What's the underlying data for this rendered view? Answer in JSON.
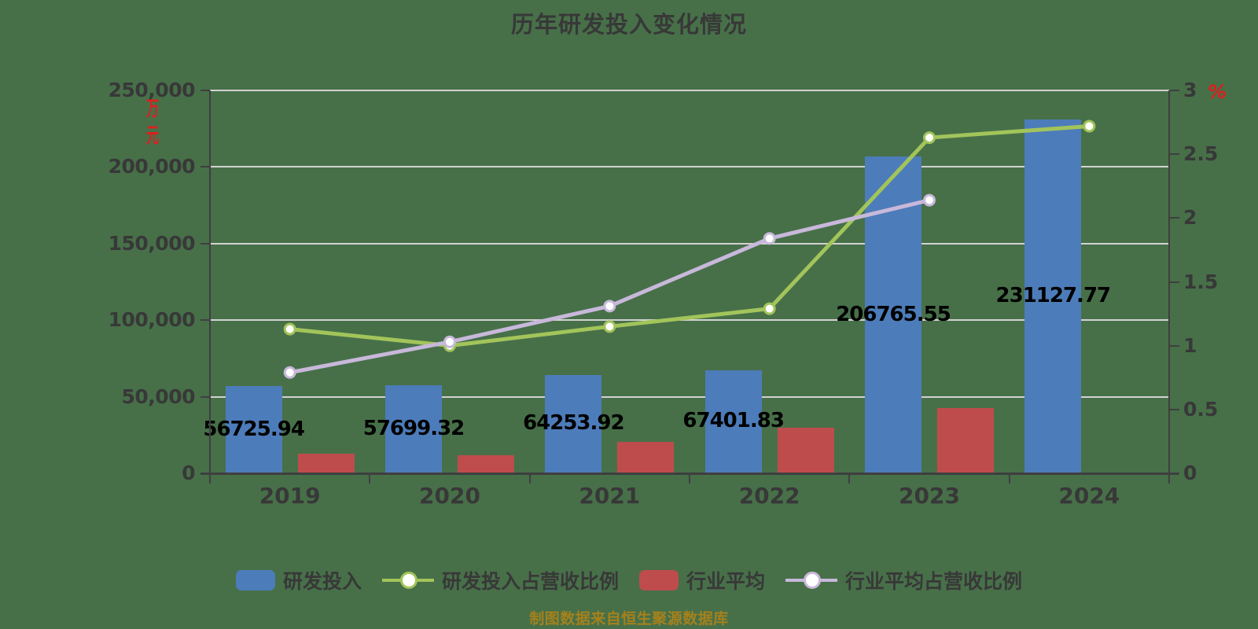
{
  "title": "历年研发投入变化情况",
  "caption": "制图数据来自恒生聚源数据库",
  "axes": {
    "left": {
      "unit": "万元",
      "tick_values": [
        0,
        50000,
        100000,
        150000,
        200000,
        250000
      ],
      "tick_labels": [
        "0",
        "50,000",
        "100,000",
        "150,000",
        "200,000",
        "250,000"
      ]
    },
    "right": {
      "unit": "%",
      "tick_values": [
        0,
        0.5,
        1,
        1.5,
        2,
        2.5,
        3
      ],
      "tick_labels": [
        "0",
        "0.5",
        "1",
        "1.5",
        "2",
        "2.5",
        "3"
      ]
    },
    "x": {
      "tick_labels": [
        "2019",
        "2020",
        "2021",
        "2022",
        "2023",
        "2024"
      ]
    }
  },
  "chart_data": {
    "type": "combo-bar-line",
    "categories": [
      "2019",
      "2020",
      "2021",
      "2022",
      "2023",
      "2024"
    ],
    "left_ylim": [
      0,
      250000
    ],
    "right_ylim": [
      0,
      3
    ],
    "grid": "horizontal",
    "legend_position": "bottom",
    "series": [
      {
        "name": "研发投入",
        "type": "bar",
        "axis": "left",
        "color_key": "bar_blue",
        "values": [
          56725.94,
          57699.32,
          64253.92,
          67401.83,
          206765.55,
          231127.77
        ],
        "labels": [
          "56725.94",
          "57699.32",
          "64253.92",
          "67401.83",
          "206765.55",
          "231127.77"
        ]
      },
      {
        "name": "行业平均",
        "type": "bar",
        "axis": "left",
        "color_key": "bar_red",
        "values": [
          13000,
          12000,
          20500,
          29800,
          42700,
          null
        ],
        "labels": [
          null,
          null,
          null,
          null,
          null,
          null
        ]
      },
      {
        "name": "研发投入占营收比例",
        "type": "line",
        "axis": "right",
        "color_key": "line_green",
        "values": [
          1.13,
          1.0,
          1.15,
          1.29,
          2.63,
          2.72
        ]
      },
      {
        "name": "行业平均占营收比例",
        "type": "line",
        "axis": "right",
        "color_key": "line_purple",
        "values": [
          0.79,
          1.03,
          1.31,
          1.84,
          2.14,
          null
        ]
      }
    ]
  },
  "legend": [
    {
      "key": "rd-investment",
      "label": "研发投入",
      "marker": "bar",
      "color_key": "bar_blue"
    },
    {
      "key": "rd-ratio",
      "label": "研发投入占营收比例",
      "marker": "line",
      "color_key": "line_green"
    },
    {
      "key": "industry-avg",
      "label": "行业平均",
      "marker": "bar",
      "color_key": "bar_red"
    },
    {
      "key": "industry-ratio",
      "label": "行业平均占营收比例",
      "marker": "line",
      "color_key": "line_purple"
    }
  ],
  "colors": {
    "background": "#477049",
    "bar_blue": "#4d7cba",
    "bar_red": "#bf4c4c",
    "line_green": "#a2c45a",
    "line_purple": "#c8b8da",
    "marker_fill": "#ffffff",
    "grid": "#d2d2d2",
    "axis": "#3f3f3f",
    "tick_text": "#383838",
    "value_text": "#000000",
    "unit_text": "#dd1f1f",
    "caption_text": "#a5811c",
    "title_text": "#383838"
  }
}
